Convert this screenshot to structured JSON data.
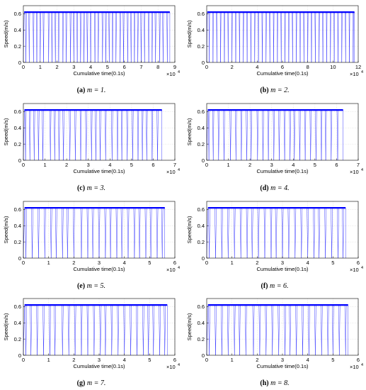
{
  "figure": {
    "axis": {
      "ylabel": "Speed(m/s)",
      "xlabel": "Cumulative time(0.1s)",
      "exponent_base": "×10",
      "exponent_power": "4",
      "yticks": [
        "0",
        "0.2",
        "0.4",
        "0.6"
      ],
      "ylim": [
        0,
        0.7
      ],
      "grid": true,
      "line_color": "#0000ff",
      "cruise_speed": 0.62
    }
  },
  "chart_data": [
    {
      "type": "line",
      "caption_label": "(a)",
      "caption_eq": "m = 1.",
      "xticks": [
        "0",
        "1",
        "2",
        "3",
        "4",
        "5",
        "6",
        "7",
        "8",
        "9"
      ],
      "xlim": [
        0,
        9
      ],
      "ylim": [
        0,
        0.7
      ],
      "x_data_end": 8.7,
      "stops_x": [
        0.15,
        0.35,
        0.6,
        0.8,
        1.0,
        1.2,
        1.5,
        1.7,
        1.9,
        2.1,
        2.35,
        2.55,
        2.8,
        3.0,
        3.2,
        3.4,
        3.6,
        3.8,
        4.0,
        4.25,
        4.45,
        4.7,
        4.9,
        5.1,
        5.3,
        5.5,
        5.75,
        5.95,
        6.2,
        6.4,
        6.6,
        6.8,
        7.0,
        7.2,
        7.45,
        7.65,
        7.85,
        8.1,
        8.3,
        8.55
      ]
    },
    {
      "type": "line",
      "caption_label": "(b)",
      "caption_eq": "m = 2.",
      "xticks": [
        "0",
        "2",
        "4",
        "6",
        "8",
        "10",
        "12"
      ],
      "xlim": [
        0,
        12
      ],
      "ylim": [
        0,
        0.7
      ],
      "x_data_end": 11.7,
      "stops_x": [
        0.2,
        0.5,
        0.8,
        1.1,
        1.4,
        1.7,
        2.0,
        2.3,
        2.6,
        2.9,
        3.2,
        3.5,
        3.8,
        4.1,
        4.4,
        4.7,
        5.0,
        5.3,
        5.6,
        5.9,
        6.2,
        6.5,
        6.8,
        7.1,
        7.4,
        7.7,
        8.0,
        8.3,
        8.6,
        8.9,
        9.2,
        9.5,
        9.8,
        10.1,
        10.4,
        10.7,
        11.0,
        11.3,
        11.6
      ]
    },
    {
      "type": "line",
      "caption_label": "(c)",
      "caption_eq": "m = 3.",
      "xticks": [
        "0",
        "1",
        "2",
        "3",
        "4",
        "5",
        "6",
        "7"
      ],
      "xlim": [
        0,
        7
      ],
      "ylim": [
        0,
        0.7
      ],
      "x_data_end": 6.4,
      "stops_x": [
        0.1,
        0.3,
        0.5,
        0.7,
        0.9,
        1.25,
        1.45,
        1.65,
        1.85,
        2.15,
        2.4,
        2.65,
        2.9,
        3.15,
        3.35,
        3.55,
        3.8,
        4.1,
        4.35,
        4.55,
        4.8,
        5.05,
        5.3,
        5.5,
        5.7,
        5.95,
        6.2
      ]
    },
    {
      "type": "line",
      "caption_label": "(d)",
      "caption_eq": "m = 4.",
      "xticks": [
        "0",
        "1",
        "2",
        "3",
        "4",
        "5",
        "6",
        "7"
      ],
      "xlim": [
        0,
        7
      ],
      "ylim": [
        0,
        0.7
      ],
      "x_data_end": 6.3,
      "stops_x": [
        0.1,
        0.3,
        0.55,
        0.8,
        1.1,
        1.35,
        1.6,
        1.85,
        2.05,
        2.35,
        2.6,
        2.85,
        3.1,
        3.35,
        3.6,
        3.85,
        4.05,
        4.3,
        4.55,
        4.8,
        5.05,
        5.3,
        5.5,
        5.75,
        6.05
      ]
    },
    {
      "type": "line",
      "caption_label": "(e)",
      "caption_eq": "m = 5.",
      "xticks": [
        "0",
        "1",
        "2",
        "3",
        "4",
        "5",
        "6"
      ],
      "xlim": [
        0,
        6
      ],
      "ylim": [
        0,
        0.7
      ],
      "x_data_end": 5.6,
      "stops_x": [
        0.1,
        0.35,
        0.6,
        0.85,
        1.1,
        1.3,
        1.55,
        1.75,
        2.0,
        2.3,
        2.55,
        2.75,
        3.0,
        3.25,
        3.45,
        3.7,
        3.9,
        4.15,
        4.4,
        4.6,
        4.85,
        5.05,
        5.3,
        5.5
      ]
    },
    {
      "type": "line",
      "caption_label": "(f)",
      "caption_eq": "m = 6.",
      "xticks": [
        "0",
        "1",
        "2",
        "3",
        "4",
        "5",
        "6"
      ],
      "xlim": [
        0,
        6
      ],
      "ylim": [
        0,
        0.7
      ],
      "x_data_end": 5.5,
      "stops_x": [
        0.1,
        0.35,
        0.6,
        0.85,
        1.1,
        1.35,
        1.6,
        1.8,
        2.05,
        2.3,
        2.55,
        2.75,
        3.0,
        3.25,
        3.5,
        3.75,
        4.0,
        4.25,
        4.45,
        4.7,
        4.95,
        5.2,
        5.4
      ]
    },
    {
      "type": "line",
      "caption_label": "(g)",
      "caption_eq": "m = 7.",
      "xticks": [
        "0",
        "1",
        "2",
        "3",
        "4",
        "5",
        "6"
      ],
      "xlim": [
        0,
        6
      ],
      "ylim": [
        0,
        0.7
      ],
      "x_data_end": 5.7,
      "stops_x": [
        0.1,
        0.3,
        0.55,
        0.8,
        1.05,
        1.25,
        1.55,
        1.8,
        2.05,
        2.3,
        2.55,
        2.8,
        3.05,
        3.25,
        3.5,
        3.75,
        4.0,
        4.25,
        4.5,
        4.75,
        4.95,
        5.15,
        5.4,
        5.6
      ]
    },
    {
      "type": "line",
      "caption_label": "(h)",
      "caption_eq": "m = 8.",
      "xticks": [
        "0",
        "1",
        "2",
        "3",
        "4",
        "5",
        "6"
      ],
      "xlim": [
        0,
        6
      ],
      "ylim": [
        0,
        0.7
      ],
      "x_data_end": 5.6,
      "stops_x": [
        0.1,
        0.35,
        0.6,
        0.85,
        1.1,
        1.3,
        1.55,
        1.85,
        2.1,
        2.35,
        2.6,
        2.85,
        3.1,
        3.3,
        3.55,
        3.8,
        4.05,
        4.3,
        4.55,
        4.8,
        5.0,
        5.25,
        5.5
      ]
    }
  ]
}
